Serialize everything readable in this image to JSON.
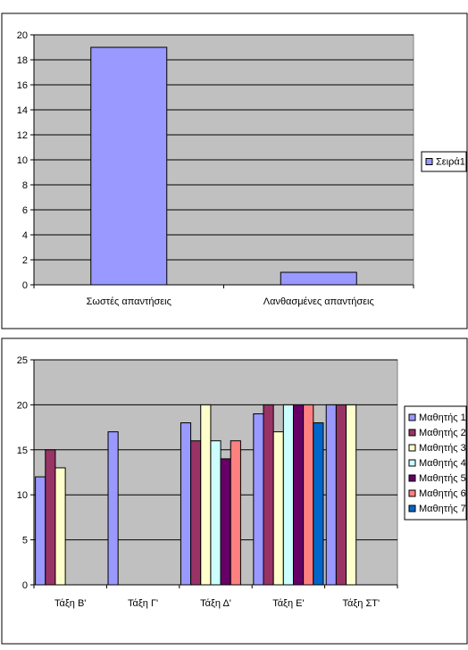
{
  "chart_data": [
    {
      "type": "bar",
      "categories": [
        "Σωστές απαντήσεις",
        "Λανθασμένες απαντήσεις"
      ],
      "series": [
        {
          "name": "Σειρά1",
          "values": [
            19,
            1
          ]
        }
      ],
      "ylim": [
        0,
        20
      ],
      "yticks": [
        "0",
        "2",
        "4",
        "6",
        "8",
        "10",
        "12",
        "14",
        "16",
        "18",
        "20"
      ],
      "grid": true,
      "legend_position": "right",
      "colors": {
        "plot_bg": "#c0c0c0",
        "series": [
          "#9999ff"
        ],
        "border": "#000000"
      }
    },
    {
      "type": "bar",
      "categories": [
        "Τάξη Β'",
        "Τάξη Γ'",
        "Τάξη Δ'",
        "Τάξη Ε'",
        "Τάξη ΣΤ'"
      ],
      "series": [
        {
          "name": "Μαθητής 1",
          "values": [
            12,
            17,
            18,
            19,
            20
          ]
        },
        {
          "name": "Μαθητής 2",
          "values": [
            15,
            null,
            16,
            20,
            20
          ]
        },
        {
          "name": "Μαθητής 3",
          "values": [
            13,
            null,
            20,
            17,
            20
          ]
        },
        {
          "name": "Μαθητής 4",
          "values": [
            null,
            null,
            16,
            20,
            null
          ]
        },
        {
          "name": "Μαθητής 5",
          "values": [
            null,
            null,
            14,
            20,
            null
          ]
        },
        {
          "name": "Μαθητής 6",
          "values": [
            null,
            null,
            16,
            20,
            null
          ]
        },
        {
          "name": "Μαθητής 7",
          "values": [
            null,
            null,
            null,
            18,
            null
          ]
        }
      ],
      "ylim": [
        0,
        25
      ],
      "yticks": [
        "0",
        "5",
        "10",
        "15",
        "20",
        "25"
      ],
      "grid": true,
      "legend_position": "right",
      "colors": {
        "plot_bg": "#c0c0c0",
        "series": [
          "#9999ff",
          "#993366",
          "#ffffcc",
          "#ccffff",
          "#660066",
          "#ff8080",
          "#0066cc"
        ],
        "border": "#000000"
      }
    }
  ]
}
